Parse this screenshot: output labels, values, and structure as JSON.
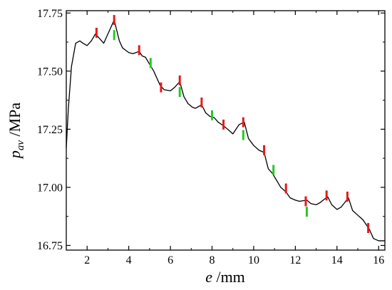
{
  "chart_data": {
    "type": "line",
    "title": "",
    "xlabel": {
      "symbol": "e",
      "unit": " /mm"
    },
    "ylabel": {
      "symbol": "p",
      "subscript": "av",
      "unit": " /MPa"
    },
    "xlim": [
      1.0,
      16.3
    ],
    "ylim": [
      16.73,
      17.76
    ],
    "x_ticks": [
      2,
      4,
      6,
      8,
      10,
      12,
      14,
      16
    ],
    "y_ticks": [
      16.75,
      17.0,
      17.25,
      17.5,
      17.75
    ],
    "x_tick_labels": [
      "2",
      "4",
      "6",
      "8",
      "10",
      "12",
      "14",
      "16"
    ],
    "y_tick_labels": [
      "16.75",
      "17.00",
      "17.25",
      "17.50",
      "17.75"
    ],
    "grid": false,
    "legend": "none",
    "colors": {
      "line": "#000000",
      "red_marker": "#e8191b",
      "green_marker": "#22cc22"
    },
    "series": [
      {
        "x": [
          1.0,
          1.1,
          1.25,
          1.45,
          1.65,
          1.8,
          2.0,
          2.2,
          2.4,
          2.6,
          2.8,
          3.0,
          3.3,
          3.55,
          3.7,
          3.85,
          4.0,
          4.2,
          4.5,
          4.65,
          4.8,
          5.0,
          5.2,
          5.5,
          5.7,
          6.0,
          6.2,
          6.45,
          6.65,
          6.85,
          7.05,
          7.2,
          7.5,
          7.7,
          7.9,
          8.1,
          8.3,
          8.55,
          8.75,
          9.0,
          9.3,
          9.55,
          9.75,
          10.0,
          10.25,
          10.5,
          10.7,
          10.9,
          11.1,
          11.3,
          11.55,
          11.75,
          12.0,
          12.2,
          12.55,
          12.75,
          13.0,
          13.2,
          13.55,
          13.75,
          14.0,
          14.2,
          14.55,
          14.75,
          15.0,
          15.25,
          15.55,
          15.75,
          16.0,
          16.3
        ],
        "y": [
          17.17,
          17.34,
          17.52,
          17.62,
          17.63,
          17.62,
          17.61,
          17.63,
          17.66,
          17.64,
          17.62,
          17.66,
          17.72,
          17.63,
          17.6,
          17.59,
          17.58,
          17.575,
          17.585,
          17.565,
          17.56,
          17.53,
          17.5,
          17.44,
          17.42,
          17.415,
          17.43,
          17.455,
          17.39,
          17.36,
          17.345,
          17.34,
          17.355,
          17.32,
          17.305,
          17.3,
          17.28,
          17.265,
          17.25,
          17.23,
          17.27,
          17.28,
          17.21,
          17.18,
          17.16,
          17.15,
          17.08,
          17.06,
          17.03,
          17.0,
          16.98,
          16.955,
          16.945,
          16.94,
          16.945,
          16.93,
          16.925,
          16.935,
          16.96,
          16.925,
          16.905,
          16.915,
          16.955,
          16.9,
          16.88,
          16.86,
          16.82,
          16.78,
          16.77,
          16.77
        ]
      }
    ],
    "markers_red": [
      {
        "x": 2.45,
        "y": 17.665
      },
      {
        "x": 3.3,
        "y": 17.72
      },
      {
        "x": 4.5,
        "y": 17.59
      },
      {
        "x": 5.55,
        "y": 17.43
      },
      {
        "x": 6.45,
        "y": 17.46
      },
      {
        "x": 7.5,
        "y": 17.365
      },
      {
        "x": 8.55,
        "y": 17.27
      },
      {
        "x": 9.5,
        "y": 17.28
      },
      {
        "x": 10.5,
        "y": 17.16
      },
      {
        "x": 11.55,
        "y": 16.995
      },
      {
        "x": 12.5,
        "y": 16.94
      },
      {
        "x": 13.5,
        "y": 16.965
      },
      {
        "x": 14.5,
        "y": 16.96
      },
      {
        "x": 15.5,
        "y": 16.825
      }
    ],
    "markers_green": [
      {
        "x": 3.3,
        "y": 17.655
      },
      {
        "x": 5.05,
        "y": 17.535
      },
      {
        "x": 6.45,
        "y": 17.41
      },
      {
        "x": 8.0,
        "y": 17.31
      },
      {
        "x": 9.5,
        "y": 17.225
      },
      {
        "x": 10.95,
        "y": 17.075
      },
      {
        "x": 12.55,
        "y": 16.895
      }
    ]
  }
}
